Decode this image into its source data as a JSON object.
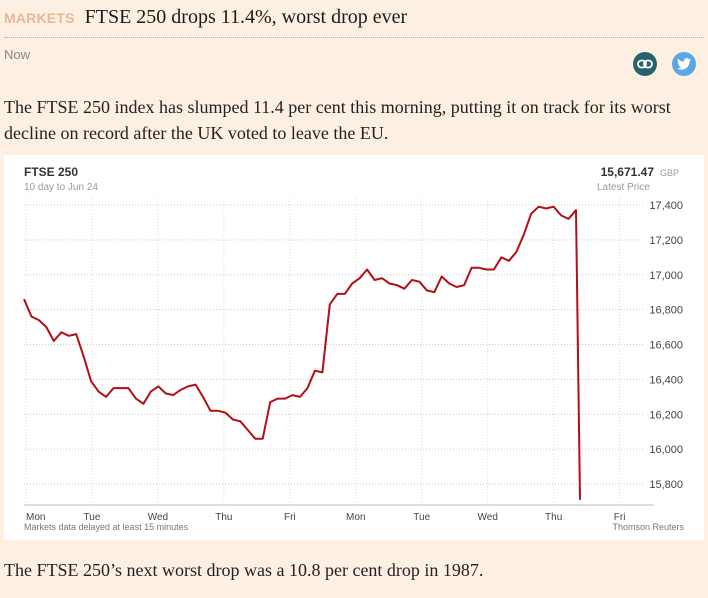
{
  "header": {
    "section": "MARKETS",
    "title": "FTSE 250 drops 11.4%, worst drop ever",
    "timestamp": "Now"
  },
  "share": {
    "link_icon": "link-icon",
    "twitter_icon": "twitter-icon",
    "link_color": "#25636d",
    "twitter_color": "#5aa7e3"
  },
  "article": {
    "lead": "The FTSE 250 index has slumped 11.4 per cent this morning, putting it on track for its worst decline on record after the UK voted to leave the EU.",
    "footer": "The FTSE 250’s next worst drop was a 10.8 per cent drop in 1987."
  },
  "chart_data": {
    "type": "line",
    "title": "FTSE 250",
    "subtitle": "10 day to Jun 24",
    "latest_value": "15,671.47",
    "latest_currency": "GBP",
    "latest_label": "Latest Price",
    "source_note": "Markets data delayed at least 15 minutes",
    "source": "Thomson Reuters",
    "line_color": "#b30f16",
    "grid": true,
    "ylim": [
      15680,
      17440
    ],
    "y_ticks": [
      15800,
      16000,
      16200,
      16400,
      16600,
      16800,
      17000,
      17200,
      17400
    ],
    "y_tick_labels": [
      "15,800",
      "16,000",
      "16,200",
      "16,400",
      "16,600",
      "16,800",
      "17,000",
      "17,200",
      "17,400"
    ],
    "x_tick_labels": [
      "Mon",
      "Tue",
      "Wed",
      "Thu",
      "Fri",
      "Mon",
      "Tue",
      "Wed",
      "Thu",
      "Fri"
    ],
    "series": [
      {
        "values": [
          16860,
          16760,
          16740,
          16700,
          16620,
          16670,
          16650,
          16660,
          16530,
          16390,
          16330,
          16300,
          16350,
          16350,
          16350,
          16290,
          16260,
          16330,
          16360,
          16320,
          16310,
          16340,
          16360,
          16370,
          16300,
          16220,
          16220,
          16210,
          16170,
          16160,
          16110,
          16060,
          16060,
          16270,
          16290,
          16290,
          16310,
          16300,
          16350,
          16450,
          16440,
          16830,
          16890,
          16890,
          16950,
          16980,
          17030,
          16970,
          16980,
          16950,
          16940,
          16920,
          16970,
          16960,
          16910,
          16900,
          16990,
          16950,
          16930,
          16940,
          17040,
          17040,
          17030,
          17030,
          17100,
          17080,
          17130,
          17230,
          17350,
          17390,
          17380,
          17390,
          17340,
          17320,
          17370,
          15710
        ]
      }
    ]
  }
}
